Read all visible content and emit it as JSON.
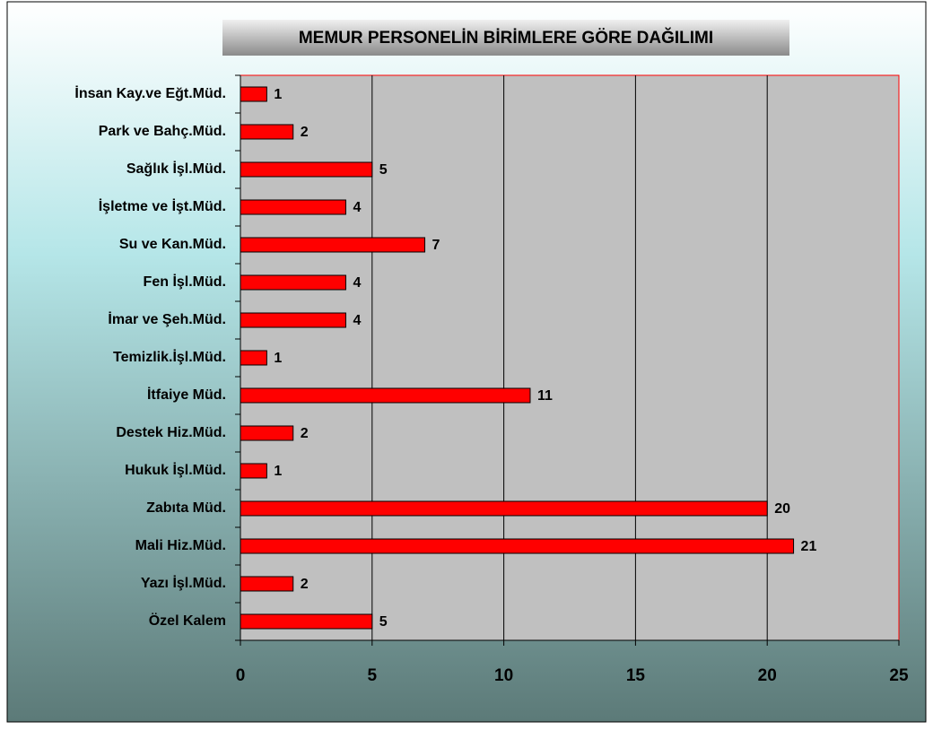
{
  "chart_data": {
    "type": "bar",
    "orientation": "horizontal",
    "title": "MEMUR PERSONELİN BİRİMLERE GÖRE DAĞILIMI",
    "categories": [
      "İnsan Kay.ve Eğt.Müd.",
      "Park ve Bahç.Müd.",
      "Sağlık İşl.Müd.",
      "İşletme ve İşt.Müd.",
      "Su ve Kan.Müd.",
      "Fen İşl.Müd.",
      "İmar ve Şeh.Müd.",
      "Temizlik.İşl.Müd.",
      "İtfaiye Müd.",
      "Destek Hiz.Müd.",
      "Hukuk İşl.Müd.",
      "Zabıta Müd.",
      "Mali Hiz.Müd.",
      "Yazı İşl.Müd.",
      "Özel Kalem"
    ],
    "values": [
      1,
      2,
      5,
      4,
      7,
      4,
      4,
      1,
      11,
      2,
      1,
      20,
      21,
      2,
      5
    ],
    "color": "#ff0000",
    "xlim": [
      0,
      25
    ],
    "xticks": [
      0,
      5,
      10,
      15,
      20,
      25
    ],
    "grid": true
  }
}
